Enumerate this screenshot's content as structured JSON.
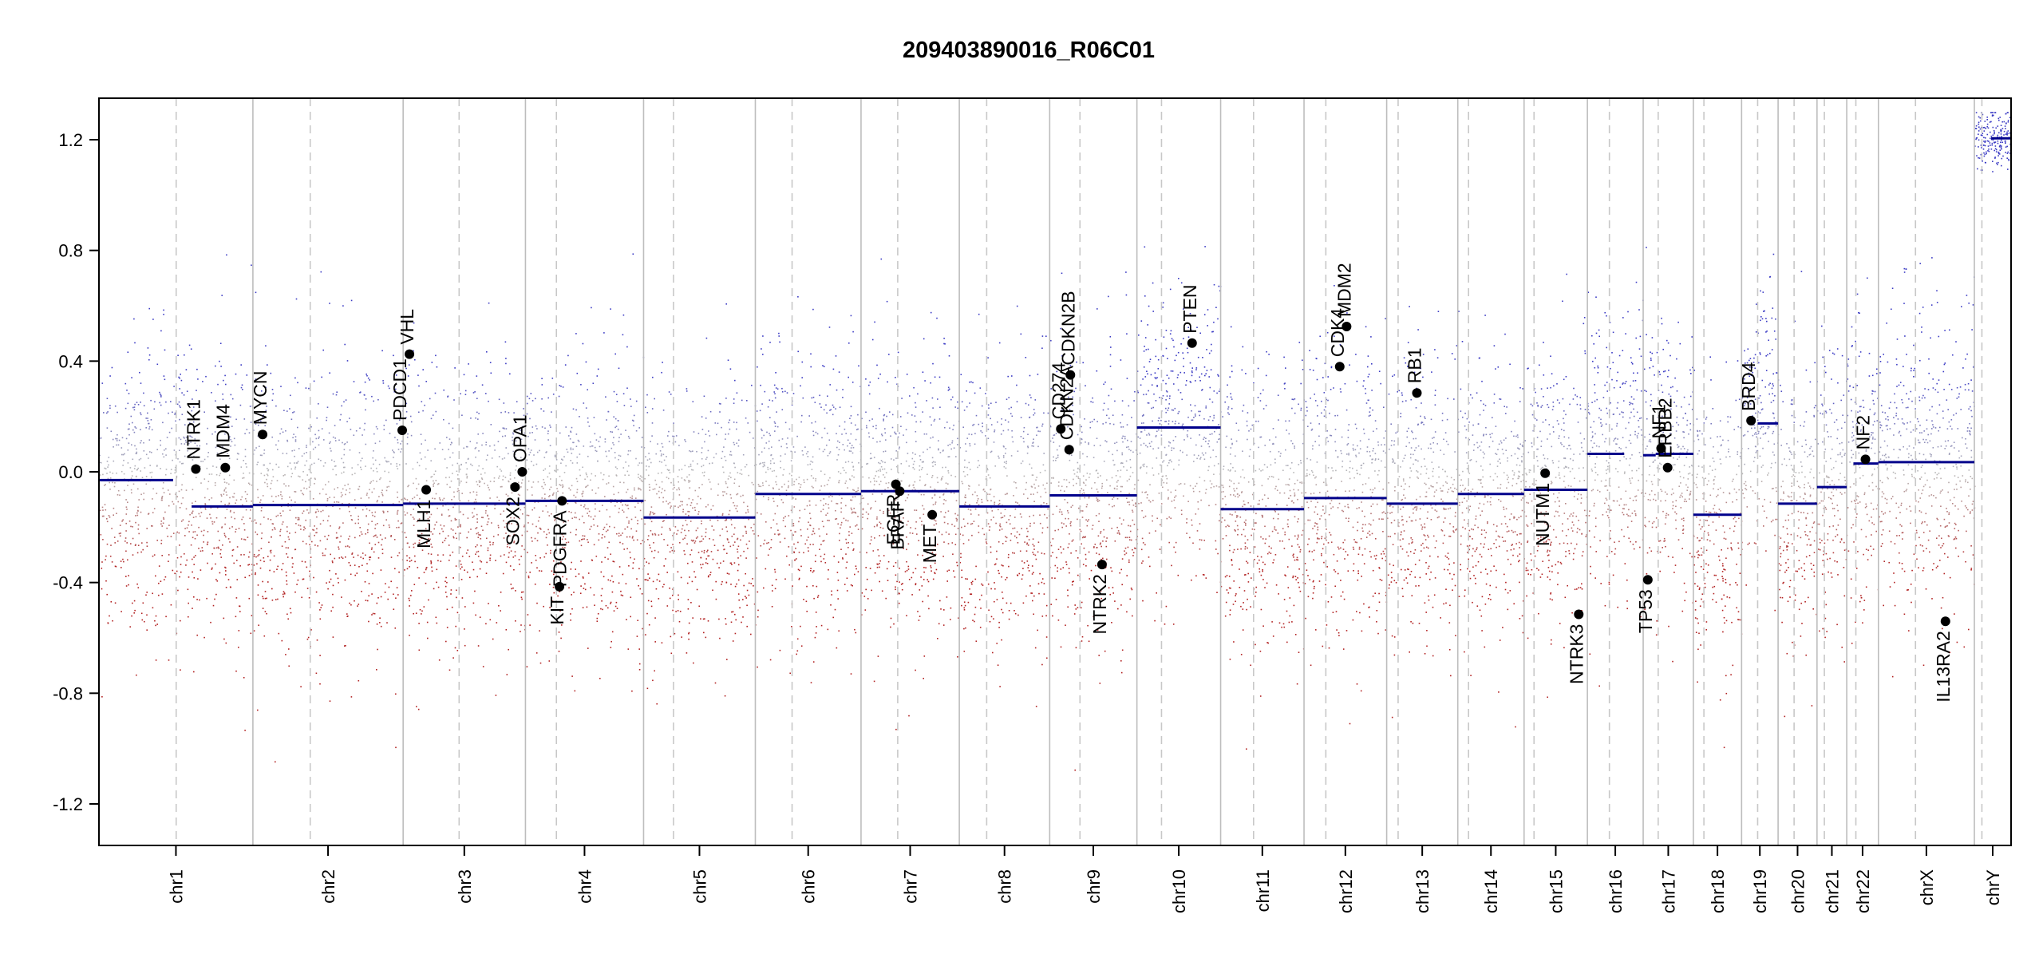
{
  "chart_data": {
    "type": "scatter",
    "title": "209403890016_R06C01",
    "xlabel": "",
    "ylabel": "",
    "ylim": [
      -1.35,
      1.35
    ],
    "y_ticks": [
      -1.2,
      -0.8,
      -0.4,
      0.0,
      0.4,
      0.8,
      1.2
    ],
    "y_tick_labels": [
      "-1.2",
      "-0.8",
      "-0.4",
      "0.0",
      "0.4",
      "0.8",
      "1.2"
    ],
    "grid": false,
    "legend": "none",
    "colors": {
      "gain_probe": "#3b3bc4",
      "loss_probe": "#b22222",
      "neutral_probe": "#b8b8b8",
      "segment": "#00008b",
      "chrom_boundary": "#bdbdbd",
      "centromere": "#c8c8c8",
      "gene_point": "#000000"
    },
    "chromosomes": [
      {
        "name": "chr1",
        "start": 0.0,
        "end": 249.2,
        "centromere": 125.0,
        "segments": [
          {
            "start": 0.0,
            "end": 120.0,
            "value": -0.03
          },
          {
            "start": 150.0,
            "end": 249.2,
            "value": -0.125
          }
        ]
      },
      {
        "name": "chr2",
        "start": 249.2,
        "end": 492.4,
        "centromere": 342.0,
        "segments": [
          {
            "start": 249.2,
            "end": 492.4,
            "value": -0.12
          }
        ]
      },
      {
        "name": "chr3",
        "start": 492.4,
        "end": 690.4,
        "centromere": 583.0,
        "segments": [
          {
            "start": 492.4,
            "end": 690.4,
            "value": -0.115
          }
        ]
      },
      {
        "name": "chr4",
        "start": 690.4,
        "end": 881.6,
        "centromere": 740.5,
        "segments": [
          {
            "start": 690.4,
            "end": 881.6,
            "value": -0.105
          }
        ]
      },
      {
        "name": "chr5",
        "start": 881.6,
        "end": 1062.5,
        "centromere": 930.0,
        "segments": [
          {
            "start": 881.6,
            "end": 1062.5,
            "value": -0.165
          }
        ]
      },
      {
        "name": "chr6",
        "start": 1062.5,
        "end": 1233.6,
        "centromere": 1122.0,
        "segments": [
          {
            "start": 1062.5,
            "end": 1233.6,
            "value": -0.08
          }
        ]
      },
      {
        "name": "chr7",
        "start": 1233.6,
        "end": 1392.7,
        "centromere": 1293.0,
        "segments": [
          {
            "start": 1233.6,
            "end": 1392.7,
            "value": -0.07
          }
        ]
      },
      {
        "name": "chr8",
        "start": 1392.7,
        "end": 1539.0,
        "centromere": 1437.0,
        "segments": [
          {
            "start": 1392.7,
            "end": 1539.0,
            "value": -0.125
          }
        ]
      },
      {
        "name": "chr9",
        "start": 1539.0,
        "end": 1680.2,
        "centromere": 1588.0,
        "segments": [
          {
            "start": 1539.0,
            "end": 1680.2,
            "value": -0.085
          }
        ]
      },
      {
        "name": "chr10",
        "start": 1680.2,
        "end": 1815.7,
        "centromere": 1720.0,
        "segments": [
          {
            "start": 1680.2,
            "end": 1815.7,
            "value": 0.16
          }
        ]
      },
      {
        "name": "chr11",
        "start": 1815.7,
        "end": 1950.7,
        "centromere": 1869.0,
        "segments": [
          {
            "start": 1815.7,
            "end": 1950.7,
            "value": -0.135
          }
        ]
      },
      {
        "name": "chr12",
        "start": 1950.7,
        "end": 2084.5,
        "centromere": 1986.0,
        "segments": [
          {
            "start": 1950.7,
            "end": 2084.5,
            "value": -0.095
          }
        ]
      },
      {
        "name": "chr13",
        "start": 2084.5,
        "end": 2199.6,
        "centromere": 2103.0,
        "segments": [
          {
            "start": 2084.5,
            "end": 2199.6,
            "value": -0.115
          }
        ]
      },
      {
        "name": "chr14",
        "start": 2199.6,
        "end": 2306.9,
        "centromere": 2217.0,
        "segments": [
          {
            "start": 2199.6,
            "end": 2306.9,
            "value": -0.08
          }
        ]
      },
      {
        "name": "chr15",
        "start": 2306.9,
        "end": 2409.4,
        "centromere": 2323.0,
        "segments": [
          {
            "start": 2306.9,
            "end": 2409.4,
            "value": -0.065
          }
        ]
      },
      {
        "name": "chr16",
        "start": 2409.4,
        "end": 2499.7,
        "centromere": 2445.0,
        "segments": [
          {
            "start": 2409.4,
            "end": 2469.0,
            "value": 0.065
          }
        ]
      },
      {
        "name": "chr17",
        "start": 2499.7,
        "end": 2580.9,
        "centromere": 2524.0,
        "segments": [
          {
            "start": 2499.7,
            "end": 2520.0,
            "value": 0.06
          },
          {
            "start": 2520.0,
            "end": 2580.9,
            "value": 0.065
          }
        ]
      },
      {
        "name": "chr18",
        "start": 2580.9,
        "end": 2659.0,
        "centromere": 2598.0,
        "segments": [
          {
            "start": 2580.9,
            "end": 2659.0,
            "value": -0.155
          }
        ]
      },
      {
        "name": "chr19",
        "start": 2659.0,
        "end": 2718.1,
        "centromere": 2685.0,
        "segments": [
          {
            "start": 2685.0,
            "end": 2718.1,
            "value": 0.175
          }
        ]
      },
      {
        "name": "chr20",
        "start": 2718.1,
        "end": 2781.1,
        "centromere": 2744.0,
        "segments": [
          {
            "start": 2718.1,
            "end": 2781.1,
            "value": -0.115
          }
        ]
      },
      {
        "name": "chr21",
        "start": 2781.1,
        "end": 2829.2,
        "centromere": 2793.0,
        "segments": [
          {
            "start": 2781.1,
            "end": 2829.2,
            "value": -0.055
          }
        ]
      },
      {
        "name": "chr22",
        "start": 2829.2,
        "end": 2880.5,
        "centromere": 2844.0,
        "segments": [
          {
            "start": 2840.0,
            "end": 2880.5,
            "value": 0.03
          }
        ]
      },
      {
        "name": "chrX",
        "start": 2880.5,
        "end": 3035.8,
        "centromere": 2940.5,
        "segments": [
          {
            "start": 2880.5,
            "end": 3035.8,
            "value": 0.035
          }
        ]
      },
      {
        "name": "chrY",
        "start": 3035.8,
        "end": 3095.2,
        "centromere": 3048.0,
        "segments": [
          {
            "start": 3063.0,
            "end": 3095.2,
            "value": 1.205
          }
        ]
      }
    ],
    "genes": [
      {
        "name": "NTRK1",
        "x": 156.8,
        "y": 0.01,
        "label_side": "above"
      },
      {
        "name": "MDM4",
        "x": 204.5,
        "y": 0.015,
        "label_side": "above"
      },
      {
        "name": "MYCN",
        "x": 264.9,
        "y": 0.135,
        "label_side": "above"
      },
      {
        "name": "PDCD1",
        "x": 490.9,
        "y": 0.15,
        "label_side": "above"
      },
      {
        "name": "VHL",
        "x": 502.6,
        "y": 0.425,
        "label_side": "above"
      },
      {
        "name": "MLH1",
        "x": 529.7,
        "y": -0.065,
        "label_side": "below"
      },
      {
        "name": "SOX2",
        "x": 673.5,
        "y": -0.055,
        "label_side": "below"
      },
      {
        "name": "OPA1",
        "x": 685.2,
        "y": 0.0,
        "label_side": "above"
      },
      {
        "name": "KIT",
        "x": 745.5,
        "y": -0.415,
        "label_side": "below"
      },
      {
        "name": "PDGFRA",
        "x": 749.6,
        "y": -0.105,
        "label_side": "below"
      },
      {
        "name": "EGFR",
        "x": 1290.0,
        "y": -0.045,
        "label_side": "below"
      },
      {
        "name": "BRAF",
        "x": 1296.2,
        "y": -0.07,
        "label_side": "below"
      },
      {
        "name": "MET",
        "x": 1348.8,
        "y": -0.155,
        "label_side": "below"
      },
      {
        "name": "CD274",
        "x": 1557.0,
        "y": 0.155,
        "label_side": "above"
      },
      {
        "name": "CDKN2A",
        "x": 1570.5,
        "y": 0.08,
        "label_side": "above"
      },
      {
        "name": "CDKN2B",
        "x": 1572.5,
        "y": 0.35,
        "label_side": "above"
      },
      {
        "name": "NTRK2",
        "x": 1623.7,
        "y": -0.335,
        "label_side": "below"
      },
      {
        "name": "PTEN",
        "x": 1769.5,
        "y": 0.465,
        "label_side": "above"
      },
      {
        "name": "CDK4",
        "x": 2008.5,
        "y": 0.38,
        "label_side": "above"
      },
      {
        "name": "MDM2",
        "x": 2019.6,
        "y": 0.525,
        "label_side": "above"
      },
      {
        "name": "RB1",
        "x": 2133.4,
        "y": 0.285,
        "label_side": "above"
      },
      {
        "name": "NUTM1",
        "x": 2341.0,
        "y": -0.005,
        "label_side": "below"
      },
      {
        "name": "NTRK3",
        "x": 2395.4,
        "y": -0.515,
        "label_side": "below"
      },
      {
        "name": "TP53",
        "x": 2507.2,
        "y": -0.39,
        "label_side": "below"
      },
      {
        "name": "NF1",
        "x": 2528.7,
        "y": 0.085,
        "label_side": "above"
      },
      {
        "name": "ERBB2",
        "x": 2539.3,
        "y": 0.015,
        "label_side": "above"
      },
      {
        "name": "BRD4",
        "x": 2674.3,
        "y": 0.185,
        "label_side": "above"
      },
      {
        "name": "NF2",
        "x": 2859.5,
        "y": 0.045,
        "label_side": "above"
      },
      {
        "name": "IL13RA2",
        "x": 2989.0,
        "y": -0.54,
        "label_side": "below"
      }
    ]
  }
}
